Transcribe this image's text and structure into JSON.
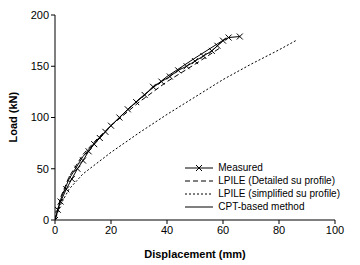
{
  "chart_data": {
    "type": "line",
    "x_label": "Displacement (mm)",
    "y_label": "Load (kN)",
    "xlim": [
      0,
      100
    ],
    "xticks": [
      0,
      20,
      40,
      60,
      80,
      100
    ],
    "ylim": [
      0,
      200
    ],
    "yticks": [
      0,
      50,
      100,
      150,
      200
    ],
    "grid": false,
    "legend": "lower right",
    "series": [
      {
        "name": "Measured",
        "color": "#000000",
        "marker": "x",
        "line_style": "solid",
        "x": [
          0,
          1,
          2,
          4,
          6,
          8,
          10,
          12,
          14,
          16,
          18,
          20,
          23,
          26,
          29,
          32,
          35,
          38,
          41,
          44,
          47,
          50,
          53,
          56,
          58,
          60,
          62,
          66
        ],
        "values": [
          0,
          10,
          18,
          30,
          40,
          50,
          58,
          67,
          74,
          80,
          86,
          92,
          100,
          108,
          115,
          122,
          130,
          135,
          140,
          146,
          150,
          155,
          160,
          165,
          170,
          175,
          178,
          179
        ]
      },
      {
        "name": "LPILE (Detailed su profile)",
        "color": "#000000",
        "marker": "none",
        "line_style": "dashed",
        "x": [
          0,
          2,
          5,
          10,
          15,
          20,
          30,
          40,
          50,
          59
        ],
        "values": [
          0,
          22,
          42,
          64,
          79,
          92,
          115,
          135,
          152,
          168
        ]
      },
      {
        "name": "LPILE (simplified su profile)",
        "color": "#000000",
        "marker": "none",
        "line_style": "dotted",
        "x": [
          0,
          2,
          5,
          10,
          20,
          30,
          40,
          50,
          60,
          70,
          80,
          86
        ],
        "values": [
          0,
          15,
          30,
          45,
          66,
          85,
          103,
          120,
          137,
          152,
          166,
          175
        ]
      },
      {
        "name": "CPT-based method",
        "color": "#000000",
        "marker": "none",
        "line_style": "solid",
        "x": [
          0,
          2,
          5,
          10,
          15,
          20,
          30,
          40,
          50,
          61
        ],
        "values": [
          0,
          20,
          40,
          62,
          78,
          92,
          118,
          140,
          158,
          177
        ]
      }
    ]
  }
}
